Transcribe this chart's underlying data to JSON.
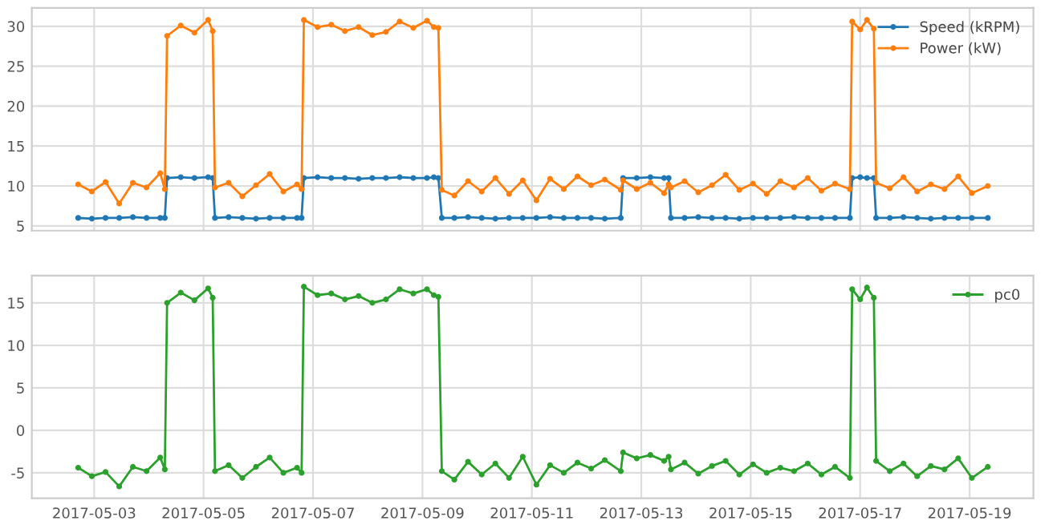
{
  "chart_data": [
    {
      "type": "line",
      "x": [
        "2017-05-02T17:00",
        "2017-05-02T23:00",
        "2017-05-03T05:00",
        "2017-05-03T11:00",
        "2017-05-03T17:00",
        "2017-05-03T23:00",
        "2017-05-04T05:00",
        "2017-05-04T07:00",
        "2017-05-04T08:00",
        "2017-05-04T14:00",
        "2017-05-04T20:00",
        "2017-05-05T02:00",
        "2017-05-05T04:00",
        "2017-05-05T05:00",
        "2017-05-05T11:00",
        "2017-05-05T17:00",
        "2017-05-05T23:00",
        "2017-05-06T05:00",
        "2017-05-06T11:00",
        "2017-05-06T17:00",
        "2017-05-06T19:00",
        "2017-05-06T20:00",
        "2017-05-07T02:00",
        "2017-05-07T08:00",
        "2017-05-07T14:00",
        "2017-05-07T20:00",
        "2017-05-08T02:00",
        "2017-05-08T08:00",
        "2017-05-08T14:00",
        "2017-05-08T20:00",
        "2017-05-09T02:00",
        "2017-05-09T05:00",
        "2017-05-09T07:00",
        "2017-05-09T08:30",
        "2017-05-09T14:00",
        "2017-05-09T20:00",
        "2017-05-10T02:00",
        "2017-05-10T08:00",
        "2017-05-10T14:00",
        "2017-05-10T20:00",
        "2017-05-11T02:00",
        "2017-05-11T08:00",
        "2017-05-11T14:00",
        "2017-05-11T20:00",
        "2017-05-12T02:00",
        "2017-05-12T08:00",
        "2017-05-12T15:00",
        "2017-05-12T16:00",
        "2017-05-12T22:00",
        "2017-05-13T04:00",
        "2017-05-13T10:00",
        "2017-05-13T12:00",
        "2017-05-13T13:00",
        "2017-05-13T19:00",
        "2017-05-14T01:00",
        "2017-05-14T07:00",
        "2017-05-14T13:00",
        "2017-05-14T19:00",
        "2017-05-15T01:00",
        "2017-05-15T07:00",
        "2017-05-15T13:00",
        "2017-05-15T19:00",
        "2017-05-16T01:00",
        "2017-05-16T07:00",
        "2017-05-16T13:00",
        "2017-05-16T19:30",
        "2017-05-16T20:30",
        "2017-05-17T00:00",
        "2017-05-17T03:00",
        "2017-05-17T06:00",
        "2017-05-17T07:00",
        "2017-05-17T13:00",
        "2017-05-17T19:00",
        "2017-05-18T01:00",
        "2017-05-18T07:00",
        "2017-05-18T13:00",
        "2017-05-18T19:00",
        "2017-05-19T01:00",
        "2017-05-19T08:00"
      ],
      "series": [
        {
          "name": "Speed (kRPM)",
          "color": "#1f77b4",
          "values": [
            6.0,
            5.9,
            6.0,
            6.0,
            6.1,
            6.0,
            6.0,
            6.0,
            11.0,
            11.1,
            11.0,
            11.1,
            11.0,
            6.0,
            6.1,
            6.0,
            5.9,
            6.0,
            6.0,
            6.0,
            6.0,
            11.0,
            11.1,
            11.0,
            11.0,
            10.9,
            11.0,
            11.0,
            11.1,
            11.0,
            11.0,
            11.1,
            11.0,
            6.0,
            6.0,
            6.1,
            6.0,
            5.9,
            6.0,
            6.0,
            6.0,
            6.1,
            6.0,
            6.0,
            6.0,
            5.9,
            6.0,
            11.0,
            11.0,
            11.1,
            11.0,
            11.0,
            6.0,
            6.0,
            6.1,
            6.0,
            6.0,
            5.9,
            6.0,
            6.0,
            6.0,
            6.1,
            6.0,
            6.0,
            6.0,
            6.0,
            11.0,
            11.1,
            11.0,
            11.0,
            6.0,
            6.0,
            6.1,
            6.0,
            5.9,
            6.0,
            6.0,
            6.0,
            6.0
          ]
        },
        {
          "name": "Power (kW)",
          "color": "#ff7f0e",
          "values": [
            10.2,
            9.3,
            10.5,
            7.8,
            10.4,
            9.8,
            11.6,
            9.6,
            28.8,
            30.1,
            29.2,
            30.8,
            29.4,
            9.8,
            10.4,
            8.7,
            10.1,
            11.5,
            9.3,
            10.2,
            9.6,
            30.8,
            29.9,
            30.2,
            29.4,
            29.9,
            28.9,
            29.3,
            30.6,
            29.8,
            30.7,
            29.9,
            29.8,
            9.5,
            8.8,
            10.6,
            9.3,
            11.0,
            9.0,
            10.7,
            8.2,
            10.9,
            9.6,
            11.2,
            10.1,
            10.8,
            9.5,
            10.7,
            9.6,
            10.4,
            9.1,
            10.2,
            9.8,
            10.6,
            9.2,
            10.1,
            11.4,
            9.5,
            10.3,
            9.0,
            10.6,
            9.8,
            11.0,
            9.4,
            10.3,
            9.6,
            30.6,
            29.6,
            30.8,
            29.7,
            10.4,
            9.7,
            11.1,
            9.3,
            10.2,
            9.6,
            11.2,
            9.1,
            10.0
          ]
        }
      ],
      "xlim": [
        "2017-05-01T20:40",
        "2017-05-20T04:00"
      ],
      "xticks": [
        "2017-05-03",
        "2017-05-05",
        "2017-05-07",
        "2017-05-09",
        "2017-05-11",
        "2017-05-13",
        "2017-05-15",
        "2017-05-17",
        "2017-05-19"
      ],
      "ylim": [
        4.4,
        32.3
      ],
      "yticks": [
        5,
        10,
        15,
        20,
        25,
        30
      ],
      "tick_labels": "y",
      "grid": true,
      "legend": "top right",
      "marker": "circle",
      "line_style": "solid"
    },
    {
      "type": "line",
      "x": [
        "2017-05-02T17:00",
        "2017-05-02T23:00",
        "2017-05-03T05:00",
        "2017-05-03T11:00",
        "2017-05-03T17:00",
        "2017-05-03T23:00",
        "2017-05-04T05:00",
        "2017-05-04T07:00",
        "2017-05-04T08:00",
        "2017-05-04T14:00",
        "2017-05-04T20:00",
        "2017-05-05T02:00",
        "2017-05-05T04:00",
        "2017-05-05T05:00",
        "2017-05-05T11:00",
        "2017-05-05T17:00",
        "2017-05-05T23:00",
        "2017-05-06T05:00",
        "2017-05-06T11:00",
        "2017-05-06T17:00",
        "2017-05-06T19:00",
        "2017-05-06T20:00",
        "2017-05-07T02:00",
        "2017-05-07T08:00",
        "2017-05-07T14:00",
        "2017-05-07T20:00",
        "2017-05-08T02:00",
        "2017-05-08T08:00",
        "2017-05-08T14:00",
        "2017-05-08T20:00",
        "2017-05-09T02:00",
        "2017-05-09T05:00",
        "2017-05-09T07:00",
        "2017-05-09T08:30",
        "2017-05-09T14:00",
        "2017-05-09T20:00",
        "2017-05-10T02:00",
        "2017-05-10T08:00",
        "2017-05-10T14:00",
        "2017-05-10T20:00",
        "2017-05-11T02:00",
        "2017-05-11T08:00",
        "2017-05-11T14:00",
        "2017-05-11T20:00",
        "2017-05-12T02:00",
        "2017-05-12T08:00",
        "2017-05-12T15:00",
        "2017-05-12T16:00",
        "2017-05-12T22:00",
        "2017-05-13T04:00",
        "2017-05-13T10:00",
        "2017-05-13T12:00",
        "2017-05-13T13:00",
        "2017-05-13T19:00",
        "2017-05-14T01:00",
        "2017-05-14T07:00",
        "2017-05-14T13:00",
        "2017-05-14T19:00",
        "2017-05-15T01:00",
        "2017-05-15T07:00",
        "2017-05-15T13:00",
        "2017-05-15T19:00",
        "2017-05-16T01:00",
        "2017-05-16T07:00",
        "2017-05-16T13:00",
        "2017-05-16T19:30",
        "2017-05-16T20:30",
        "2017-05-17T00:00",
        "2017-05-17T03:00",
        "2017-05-17T06:00",
        "2017-05-17T07:00",
        "2017-05-17T13:00",
        "2017-05-17T19:00",
        "2017-05-18T01:00",
        "2017-05-18T07:00",
        "2017-05-18T13:00",
        "2017-05-18T19:00",
        "2017-05-19T01:00",
        "2017-05-19T08:00"
      ],
      "series": [
        {
          "name": "pc0",
          "color": "#2ca02c",
          "values": [
            -4.4,
            -5.4,
            -4.9,
            -6.6,
            -4.3,
            -4.8,
            -3.2,
            -4.6,
            15.0,
            16.2,
            15.3,
            16.7,
            15.6,
            -4.8,
            -4.1,
            -5.6,
            -4.3,
            -3.2,
            -5.0,
            -4.4,
            -5.0,
            16.9,
            15.9,
            16.1,
            15.4,
            15.8,
            15.0,
            15.4,
            16.6,
            16.1,
            16.6,
            15.9,
            15.7,
            -4.8,
            -5.8,
            -3.7,
            -5.2,
            -3.9,
            -5.6,
            -3.1,
            -6.4,
            -4.1,
            -5.0,
            -3.8,
            -4.5,
            -3.5,
            -4.8,
            -2.6,
            -3.3,
            -2.9,
            -3.6,
            -3.1,
            -4.6,
            -3.8,
            -5.1,
            -4.2,
            -3.6,
            -5.2,
            -4.0,
            -5.0,
            -4.4,
            -4.8,
            -3.9,
            -5.2,
            -4.3,
            -5.6,
            16.6,
            15.4,
            16.8,
            15.6,
            -3.6,
            -4.8,
            -3.9,
            -5.4,
            -4.2,
            -4.6,
            -3.3,
            -5.6,
            -4.3
          ]
        }
      ],
      "xlim": [
        "2017-05-01T20:40",
        "2017-05-20T04:00"
      ],
      "xticks": [
        "2017-05-03",
        "2017-05-05",
        "2017-05-07",
        "2017-05-09",
        "2017-05-11",
        "2017-05-13",
        "2017-05-15",
        "2017-05-17",
        "2017-05-19"
      ],
      "ylim": [
        -8,
        18.2
      ],
      "yticks": [
        -5,
        0,
        5,
        10,
        15
      ],
      "grid": true,
      "legend": "top right",
      "marker": "circle",
      "line_style": "solid"
    }
  ]
}
